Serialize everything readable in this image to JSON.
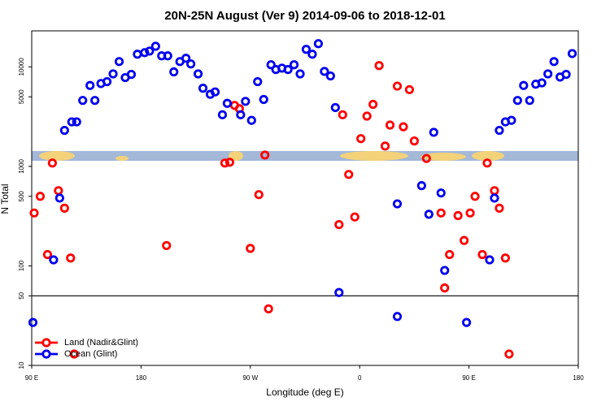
{
  "chart_data": {
    "type": "scatter",
    "title": "20N-25N August (Ver 9)   2014-09-06 to 2018-12-01",
    "x_label": "Longitude (deg E)",
    "y_label": "N Total",
    "log_y": true,
    "hline": 50,
    "legend": "bottom-left",
    "xlim": [
      90,
      540
    ],
    "xticks": [
      {
        "value": 90,
        "label": "90 E"
      },
      180,
      {
        "value": 270,
        "label": "90 W"
      },
      {
        "value": 360,
        "label": "0"
      },
      {
        "value": 450,
        "label": "90 E"
      },
      {
        "value": 540,
        "label": "180"
      }
    ],
    "ylim": [
      10,
      23000
    ],
    "yticks": [
      10,
      50,
      100,
      500,
      1000,
      5000,
      10000
    ],
    "series": [
      {
        "name": "Land (Nadir&Glint)",
        "color": "#ff0000",
        "x": [
          92,
          97,
          103,
          107,
          112,
          117,
          122,
          125,
          201,
          249,
          253,
          257,
          261,
          270,
          277,
          282,
          285,
          343,
          346,
          351,
          356,
          361,
          366,
          371,
          376,
          381,
          385,
          391,
          396,
          401,
          405,
          415,
          427,
          430,
          434,
          441,
          446,
          451,
          455,
          461,
          465,
          471,
          475,
          480,
          483
        ],
        "values": [
          340,
          500,
          130,
          1080,
          570,
          380,
          120,
          13,
          160,
          1080,
          1100,
          4100,
          3800,
          150,
          520,
          1300,
          37,
          260,
          3300,
          830,
          310,
          1900,
          3200,
          4200,
          10300,
          1600,
          2600,
          6400,
          2500,
          5900,
          1800,
          1200,
          340,
          60,
          130,
          320,
          180,
          340,
          500,
          130,
          1080,
          570,
          380,
          120,
          13
        ]
      },
      {
        "name": "Ocean (Glint)",
        "color": "#0000ee",
        "x": [
          117,
          123,
          127,
          132,
          138,
          142,
          147,
          152,
          157,
          162,
          167,
          172,
          177,
          183,
          187,
          192,
          197,
          202,
          207,
          212,
          217,
          221,
          227,
          231,
          237,
          241,
          247,
          251,
          262,
          266,
          271,
          276,
          281,
          287,
          291,
          296,
          301,
          306,
          311,
          316,
          321,
          326,
          331,
          336,
          340,
          421,
          475,
          480,
          485,
          490,
          495,
          500,
          505,
          510,
          515,
          520,
          525,
          530,
          535,
          91,
          108,
          113,
          343,
          391,
          391,
          411,
          417,
          427,
          430,
          448,
          467,
          471
        ],
        "values": [
          2300,
          2800,
          2800,
          4600,
          6500,
          4600,
          6800,
          7100,
          8500,
          11300,
          7800,
          8400,
          13400,
          13900,
          14400,
          16100,
          12900,
          12900,
          8900,
          11300,
          12200,
          10700,
          8500,
          6100,
          5300,
          5600,
          3300,
          4300,
          3300,
          4500,
          2900,
          7100,
          4700,
          10500,
          9400,
          9700,
          9400,
          10500,
          8500,
          15000,
          13400,
          17100,
          9000,
          8100,
          3900,
          2200,
          2300,
          2800,
          2900,
          4600,
          6500,
          4600,
          6700,
          6900,
          8500,
          11300,
          7900,
          8400,
          13600,
          27,
          115,
          480,
          54,
          420,
          31,
          640,
          330,
          540,
          90,
          27,
          115,
          480
        ]
      }
    ]
  }
}
